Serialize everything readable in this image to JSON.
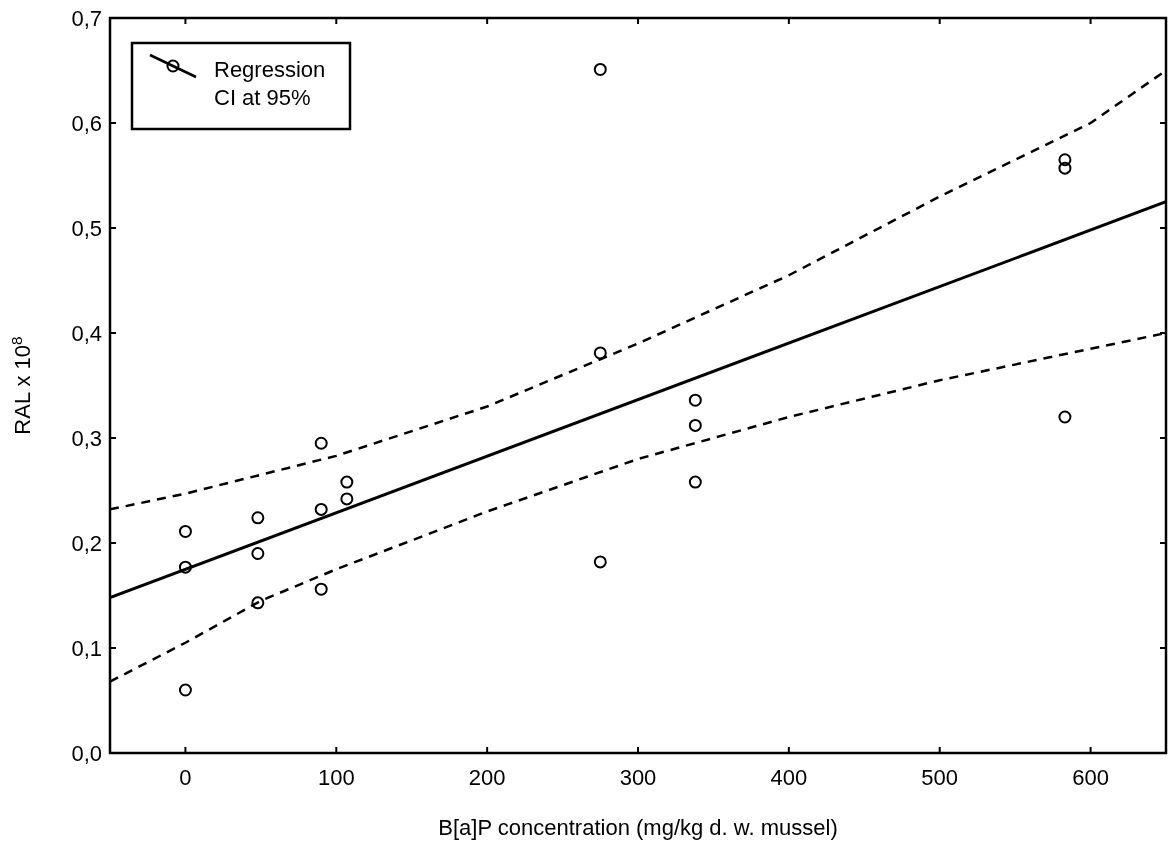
{
  "chart_data": {
    "type": "scatter",
    "xlabel": "B[a]P concentration (mg/kg d. w. mussel)",
    "ylabel": "RAL x 10$^{8}$",
    "xlim": [
      -50,
      650
    ],
    "xticks": [
      0,
      100,
      200,
      300,
      400,
      500,
      600
    ],
    "ylim": [
      0,
      0.7
    ],
    "yticks": [
      {
        "value": 0,
        "label": "0,0"
      },
      {
        "value": 0.1,
        "label": "0,1"
      },
      {
        "value": 0.2,
        "label": "0,2"
      },
      {
        "value": 0.3,
        "label": "0,3"
      },
      {
        "value": 0.4,
        "label": "0,4"
      },
      {
        "value": 0.5,
        "label": "0,5"
      },
      {
        "value": 0.6,
        "label": "0,6"
      },
      {
        "value": 0.7,
        "label": "0,7"
      }
    ],
    "grid": false,
    "legend": "top left",
    "annotations": [
      "CI at 95%"
    ],
    "series": [
      {
        "color": "#000000",
        "marker": "circle",
        "x": [
          0,
          0,
          0,
          48,
          48,
          48,
          90,
          90,
          90,
          107,
          107,
          275,
          275,
          275,
          338,
          338,
          338,
          583,
          583,
          583
        ],
        "values": [
          0.211,
          0.177,
          0.06,
          0.224,
          0.19,
          0.143,
          0.295,
          0.232,
          0.156,
          0.258,
          0.242,
          0.651,
          0.381,
          0.182,
          0.336,
          0.312,
          0.258,
          0.565,
          0.557,
          0.32
        ]
      },
      {
        "type": "line",
        "name": "Regression",
        "color": "#000000",
        "marker": "none",
        "line_style": "solid",
        "x": [
          -50,
          650
        ],
        "values": [
          0.148,
          0.525
        ]
      },
      {
        "type": "line",
        "color": "#000000",
        "marker": "none",
        "line_style": "dashed",
        "x": [
          -50,
          0,
          100,
          200,
          300,
          400,
          500,
          600,
          650
        ],
        "values": [
          0.232,
          0.247,
          0.283,
          0.33,
          0.39,
          0.455,
          0.53,
          0.6,
          0.65
        ]
      },
      {
        "type": "line",
        "color": "#000000",
        "marker": "none",
        "line_style": "dashed",
        "x": [
          -50,
          0,
          50,
          100,
          200,
          300,
          400,
          500,
          600,
          650
        ],
        "values": [
          0.068,
          0.105,
          0.145,
          0.175,
          0.23,
          0.28,
          0.32,
          0.355,
          0.385,
          0.4
        ]
      }
    ]
  }
}
